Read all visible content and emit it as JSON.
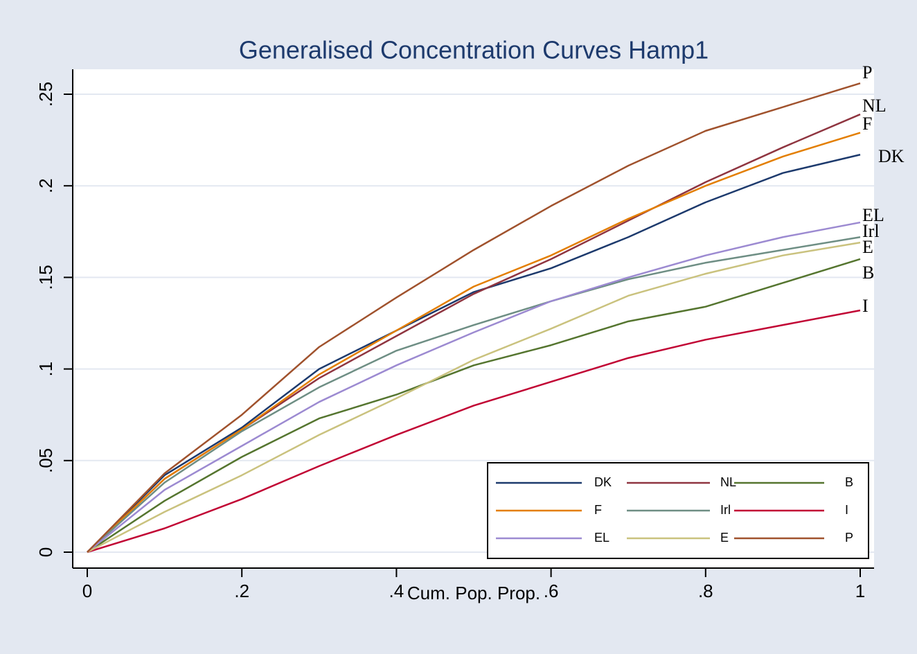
{
  "chart_data": {
    "type": "line",
    "title": "Generalised Concentration Curves Hamp1",
    "x_label": "Cum. Pop. Prop.",
    "x": [
      0,
      0.1,
      0.2,
      0.3,
      0.4,
      0.5,
      0.6,
      0.7,
      0.8,
      0.9,
      1
    ],
    "series": [
      {
        "name": "DK",
        "color": "#1d3a6d",
        "values": [
          0,
          0.042,
          0.068,
          0.1,
          0.121,
          0.142,
          0.155,
          0.172,
          0.191,
          0.207,
          0.217
        ]
      },
      {
        "name": "NL",
        "color": "#8f3540",
        "values": [
          0,
          0.04,
          0.067,
          0.095,
          0.118,
          0.141,
          0.16,
          0.181,
          0.202,
          0.221,
          0.239
        ]
      },
      {
        "name": "B",
        "color": "#55752f",
        "values": [
          0,
          0.028,
          0.052,
          0.073,
          0.086,
          0.102,
          0.113,
          0.126,
          0.134,
          0.147,
          0.16
        ]
      },
      {
        "name": "F",
        "color": "#e37e00",
        "values": [
          0,
          0.04,
          0.067,
          0.097,
          0.121,
          0.145,
          0.162,
          0.182,
          0.2,
          0.216,
          0.229
        ]
      },
      {
        "name": "Irl",
        "color": "#6e8e84",
        "values": [
          0,
          0.038,
          0.066,
          0.09,
          0.11,
          0.124,
          0.137,
          0.149,
          0.158,
          0.165,
          0.172
        ]
      },
      {
        "name": "I",
        "color": "#c10534",
        "values": [
          0,
          0.013,
          0.029,
          0.047,
          0.064,
          0.08,
          0.093,
          0.106,
          0.116,
          0.124,
          0.132
        ]
      },
      {
        "name": "EL",
        "color": "#9c8ad1",
        "values": [
          0,
          0.034,
          0.058,
          0.082,
          0.102,
          0.12,
          0.137,
          0.15,
          0.162,
          0.172,
          0.18
        ]
      },
      {
        "name": "E",
        "color": "#cac27e",
        "values": [
          0,
          0.022,
          0.042,
          0.064,
          0.084,
          0.105,
          0.122,
          0.14,
          0.152,
          0.162,
          0.169
        ]
      },
      {
        "name": "P",
        "color": "#a0522d",
        "values": [
          0,
          0.043,
          0.075,
          0.112,
          0.139,
          0.165,
          0.189,
          0.211,
          0.23,
          0.243,
          0.256
        ]
      }
    ],
    "xlim": [
      0,
      1
    ],
    "xticks": [
      0,
      {
        "value": 0.2,
        "label": ".2"
      },
      {
        "value": 0.4,
        "label": ".4"
      },
      {
        "value": 0.6,
        "label": ".6"
      },
      {
        "value": 0.8,
        "label": ".8"
      },
      1
    ],
    "ylim": [
      0,
      0.25
    ],
    "yticks": [
      0,
      {
        "value": 0.05,
        "label": ".05"
      },
      {
        "value": 0.1,
        "label": ".1"
      },
      {
        "value": 0.15,
        "label": ".15"
      },
      {
        "value": 0.2,
        "label": ".2"
      },
      {
        "value": 0.25,
        "label": ".25"
      }
    ],
    "grid": true,
    "legend_position": "lower-right"
  }
}
